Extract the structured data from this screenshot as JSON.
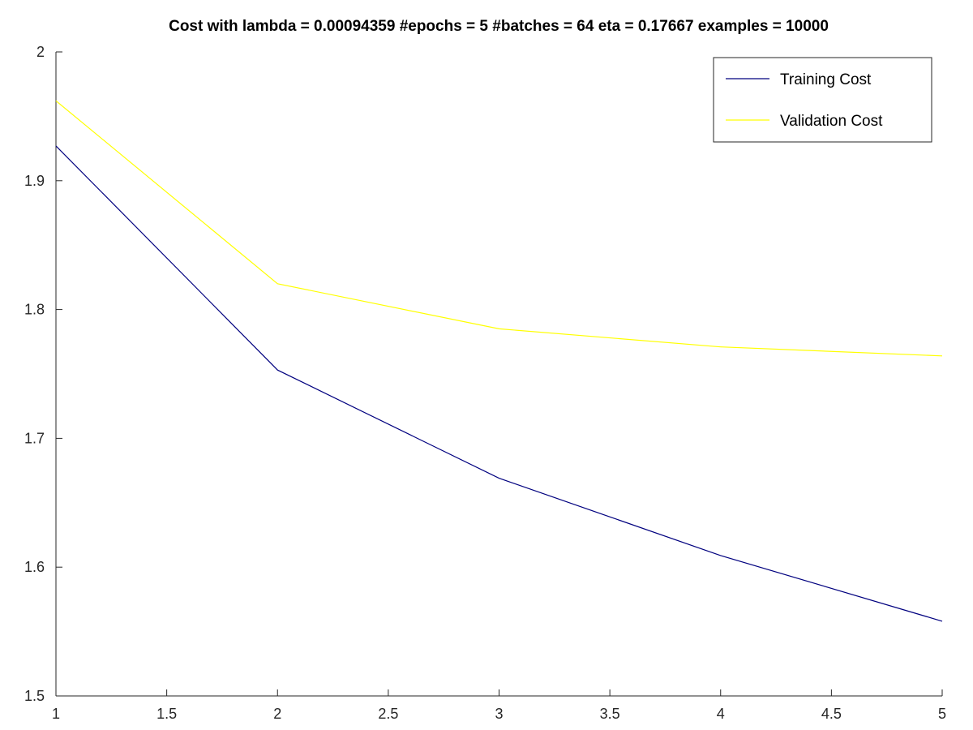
{
  "chart_data": {
    "type": "line",
    "title": "Cost with lambda = 0.00094359 #epochs = 5 #batches = 64 eta = 0.17667 examples = 10000",
    "xlabel": "",
    "ylabel": "",
    "xlim": [
      1,
      5
    ],
    "ylim": [
      1.5,
      2
    ],
    "x_ticks": [
      "1",
      "1.5",
      "2",
      "2.5",
      "3",
      "3.5",
      "4",
      "4.5",
      "5"
    ],
    "y_ticks": [
      "1.5",
      "1.6",
      "1.7",
      "1.8",
      "1.9",
      "2"
    ],
    "grid": false,
    "legend_position": "top-right",
    "x": [
      1,
      2,
      3,
      4,
      5
    ],
    "series": [
      {
        "name": "Training Cost",
        "color": "#00007f",
        "values": [
          1.927,
          1.753,
          1.669,
          1.609,
          1.558
        ]
      },
      {
        "name": "Validation Cost",
        "color": "#ffff00",
        "values": [
          1.962,
          1.82,
          1.785,
          1.771,
          1.764
        ]
      }
    ]
  }
}
